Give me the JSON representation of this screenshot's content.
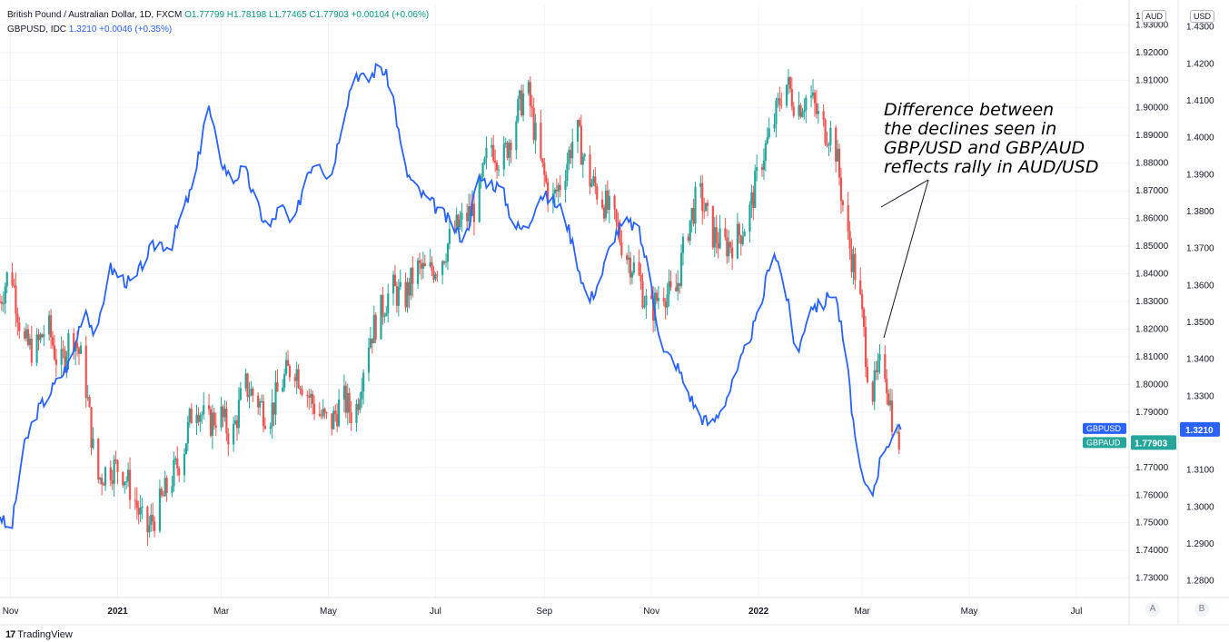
{
  "legend": {
    "main_title": "British Pound / Australian Dollar, 1D, FXCM",
    "main_values": "O1.77799 H1.78198 L1.77465 C1.77903 +0.00104 (+0.06%)",
    "second_title": "GBPUSD, IDC",
    "second_values": "1.3210 +0.0046 (+0.35%)"
  },
  "annotation": {
    "lines": [
      "Difference between",
      "the declines seen in",
      "GBP/USD and GBP/AUD",
      "reflects rally in AUD/USD"
    ]
  },
  "scales": {
    "left_label": "AUD",
    "right_label": "USD",
    "left_top_tick": "1",
    "corner_a": "A",
    "corner_b": "B"
  },
  "footer": {
    "logo": "17",
    "brand": "TradingView"
  },
  "colors": {
    "up": "#26a69a",
    "down": "#ef5350",
    "gbpusd": "#2962ff",
    "gbpaud_badge": "#26a69a",
    "gbpusd_badge": "#2962ff"
  },
  "chart_data": {
    "type": "line",
    "title": "British Pound / Australian Dollar, 1D, FXCM",
    "x_labels": [
      "Nov",
      "2021",
      "Mar",
      "May",
      "Jul",
      "Sep",
      "Nov",
      "2022",
      "Mar",
      "May",
      "Jul"
    ],
    "x_range": [
      "2020-10-26",
      "2022-07-31"
    ],
    "y_left": {
      "label": "AUD",
      "range": [
        1.723,
        1.937
      ],
      "ticks": [
        "1.93000",
        "1.92000",
        "1.91000",
        "1.90000",
        "1.89000",
        "1.88000",
        "1.87000",
        "1.86000",
        "1.85000",
        "1.84000",
        "1.83000",
        "1.82000",
        "1.81000",
        "1.80000",
        "1.79000",
        "1.78000",
        "1.77000",
        "1.76000",
        "1.75000",
        "1.74000",
        "1.73000"
      ]
    },
    "y_right": {
      "label": "USD",
      "range": [
        1.2755,
        1.4358
      ],
      "ticks": [
        "1.4300",
        "1.4200",
        "1.4100",
        "1.4000",
        "1.3900",
        "1.3800",
        "1.3700",
        "1.3600",
        "1.3500",
        "1.3400",
        "1.3300",
        "1.3200",
        "1.3100",
        "1.3000",
        "1.2900",
        "1.2800"
      ]
    },
    "series": [
      {
        "name": "GBPAUD",
        "type": "candlestick",
        "axis": "left",
        "last_value": "1.77903",
        "points": [
          [
            "2020-10-26",
            1.83
          ],
          [
            "2020-11-01",
            1.843
          ],
          [
            "2020-11-08",
            1.815
          ],
          [
            "2020-11-15",
            1.812
          ],
          [
            "2020-11-22",
            1.822
          ],
          [
            "2020-11-29",
            1.805
          ],
          [
            "2020-12-06",
            1.82
          ],
          [
            "2020-12-13",
            1.805
          ],
          [
            "2020-12-20",
            1.765
          ],
          [
            "2020-12-27",
            1.77
          ],
          [
            "2021-01-03",
            1.77
          ],
          [
            "2021-01-10",
            1.76
          ],
          [
            "2021-01-17",
            1.746
          ],
          [
            "2021-01-24",
            1.755
          ],
          [
            "2021-01-31",
            1.765
          ],
          [
            "2021-02-07",
            1.775
          ],
          [
            "2021-02-14",
            1.795
          ],
          [
            "2021-02-21",
            1.785
          ],
          [
            "2021-02-28",
            1.79
          ],
          [
            "2021-03-07",
            1.78
          ],
          [
            "2021-03-14",
            1.8
          ],
          [
            "2021-03-21",
            1.795
          ],
          [
            "2021-03-28",
            1.788
          ],
          [
            "2021-04-04",
            1.8
          ],
          [
            "2021-04-11",
            1.808
          ],
          [
            "2021-04-18",
            1.798
          ],
          [
            "2021-04-25",
            1.79
          ],
          [
            "2021-05-02",
            1.785
          ],
          [
            "2021-05-09",
            1.795
          ],
          [
            "2021-05-16",
            1.788
          ],
          [
            "2021-05-23",
            1.815
          ],
          [
            "2021-05-30",
            1.825
          ],
          [
            "2021-06-06",
            1.835
          ],
          [
            "2021-06-13",
            1.83
          ],
          [
            "2021-06-20",
            1.842
          ],
          [
            "2021-06-27",
            1.84
          ],
          [
            "2021-07-04",
            1.845
          ],
          [
            "2021-07-11",
            1.855
          ],
          [
            "2021-07-18",
            1.86
          ],
          [
            "2021-07-25",
            1.865
          ],
          [
            "2021-08-01",
            1.888
          ],
          [
            "2021-08-08",
            1.88
          ],
          [
            "2021-08-15",
            1.895
          ],
          [
            "2021-08-22",
            1.908
          ],
          [
            "2021-08-29",
            1.882
          ],
          [
            "2021-09-05",
            1.865
          ],
          [
            "2021-09-12",
            1.876
          ],
          [
            "2021-09-19",
            1.893
          ],
          [
            "2021-09-26",
            1.875
          ],
          [
            "2021-10-03",
            1.868
          ],
          [
            "2021-10-10",
            1.86
          ],
          [
            "2021-10-17",
            1.848
          ],
          [
            "2021-10-24",
            1.84
          ],
          [
            "2021-10-31",
            1.825
          ],
          [
            "2021-11-07",
            1.835
          ],
          [
            "2021-11-14",
            1.83
          ],
          [
            "2021-11-21",
            1.855
          ],
          [
            "2021-11-28",
            1.87
          ],
          [
            "2021-12-05",
            1.855
          ],
          [
            "2021-12-12",
            1.85
          ],
          [
            "2021-12-19",
            1.852
          ],
          [
            "2021-12-26",
            1.86
          ],
          [
            "2022-01-02",
            1.88
          ],
          [
            "2022-01-09",
            1.893
          ],
          [
            "2022-01-16",
            1.91
          ],
          [
            "2022-01-23",
            1.9
          ],
          [
            "2022-01-30",
            1.905
          ],
          [
            "2022-02-06",
            1.893
          ],
          [
            "2022-02-13",
            1.89
          ],
          [
            "2022-02-20",
            1.855
          ],
          [
            "2022-02-27",
            1.835
          ],
          [
            "2022-03-06",
            1.795
          ],
          [
            "2022-03-13",
            1.81
          ],
          [
            "2022-03-20",
            1.78
          ],
          [
            "2022-03-23",
            1.779
          ]
        ]
      },
      {
        "name": "GBPUSD",
        "type": "line",
        "axis": "right",
        "last_value": "1.3210",
        "points": [
          [
            "2020-10-26",
            1.298
          ],
          [
            "2020-11-01",
            1.292
          ],
          [
            "2020-11-08",
            1.315
          ],
          [
            "2020-11-15",
            1.325
          ],
          [
            "2020-11-22",
            1.33
          ],
          [
            "2020-11-29",
            1.335
          ],
          [
            "2020-12-06",
            1.34
          ],
          [
            "2020-12-13",
            1.355
          ],
          [
            "2020-12-20",
            1.345
          ],
          [
            "2020-12-27",
            1.365
          ],
          [
            "2021-01-03",
            1.362
          ],
          [
            "2021-01-10",
            1.36
          ],
          [
            "2021-01-17",
            1.368
          ],
          [
            "2021-01-24",
            1.372
          ],
          [
            "2021-01-31",
            1.37
          ],
          [
            "2021-02-07",
            1.38
          ],
          [
            "2021-02-14",
            1.388
          ],
          [
            "2021-02-21",
            1.41
          ],
          [
            "2021-02-28",
            1.395
          ],
          [
            "2021-03-07",
            1.388
          ],
          [
            "2021-03-14",
            1.392
          ],
          [
            "2021-03-21",
            1.382
          ],
          [
            "2021-03-28",
            1.375
          ],
          [
            "2021-04-04",
            1.382
          ],
          [
            "2021-04-11",
            1.375
          ],
          [
            "2021-04-18",
            1.39
          ],
          [
            "2021-04-25",
            1.395
          ],
          [
            "2021-05-02",
            1.388
          ],
          [
            "2021-05-09",
            1.405
          ],
          [
            "2021-05-16",
            1.418
          ],
          [
            "2021-05-23",
            1.415
          ],
          [
            "2021-05-30",
            1.42
          ],
          [
            "2021-06-06",
            1.414
          ],
          [
            "2021-06-13",
            1.392
          ],
          [
            "2021-06-20",
            1.386
          ],
          [
            "2021-06-27",
            1.383
          ],
          [
            "2021-07-04",
            1.38
          ],
          [
            "2021-07-11",
            1.376
          ],
          [
            "2021-07-18",
            1.372
          ],
          [
            "2021-07-25",
            1.389
          ],
          [
            "2021-08-01",
            1.388
          ],
          [
            "2021-08-08",
            1.386
          ],
          [
            "2021-08-15",
            1.376
          ],
          [
            "2021-08-22",
            1.375
          ],
          [
            "2021-08-29",
            1.385
          ],
          [
            "2021-09-05",
            1.383
          ],
          [
            "2021-09-12",
            1.38
          ],
          [
            "2021-09-19",
            1.368
          ],
          [
            "2021-09-26",
            1.355
          ],
          [
            "2021-10-03",
            1.362
          ],
          [
            "2021-10-10",
            1.373
          ],
          [
            "2021-10-17",
            1.377
          ],
          [
            "2021-10-24",
            1.376
          ],
          [
            "2021-10-31",
            1.363
          ],
          [
            "2021-11-07",
            1.342
          ],
          [
            "2021-11-14",
            1.34
          ],
          [
            "2021-11-21",
            1.332
          ],
          [
            "2021-11-28",
            1.325
          ],
          [
            "2021-12-05",
            1.322
          ],
          [
            "2021-12-12",
            1.328
          ],
          [
            "2021-12-19",
            1.335
          ],
          [
            "2021-12-26",
            1.345
          ],
          [
            "2022-01-02",
            1.353
          ],
          [
            "2022-01-09",
            1.371
          ],
          [
            "2022-01-16",
            1.36
          ],
          [
            "2022-01-23",
            1.34
          ],
          [
            "2022-01-30",
            1.355
          ],
          [
            "2022-02-06",
            1.354
          ],
          [
            "2022-02-13",
            1.36
          ],
          [
            "2022-02-20",
            1.34
          ],
          [
            "2022-02-27",
            1.31
          ],
          [
            "2022-03-06",
            1.302
          ],
          [
            "2022-03-13",
            1.316
          ],
          [
            "2022-03-20",
            1.32
          ],
          [
            "2022-03-23",
            1.321
          ]
        ]
      }
    ],
    "grid": true,
    "legend_position": "top-left"
  }
}
